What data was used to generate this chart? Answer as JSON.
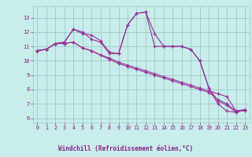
{
  "background_color": "#c8ecea",
  "grid_color": "#99ccca",
  "line_color": "#993399",
  "xlabel": "Windchill (Refroidissement éolien,°C)",
  "xlabel_color": "#882288",
  "tick_color": "#882288",
  "xlim": [
    -0.5,
    23.5
  ],
  "ylim": [
    5.7,
    13.8
  ],
  "yticks": [
    6,
    7,
    8,
    9,
    10,
    11,
    12,
    13
  ],
  "xticks": [
    0,
    1,
    2,
    3,
    4,
    5,
    6,
    7,
    8,
    9,
    10,
    11,
    12,
    13,
    14,
    15,
    16,
    17,
    18,
    19,
    20,
    21,
    22,
    23
  ],
  "lines": [
    [
      10.7,
      10.8,
      11.2,
      11.3,
      12.2,
      11.9,
      11.8,
      11.4,
      10.6,
      10.5,
      12.5,
      13.3,
      13.4,
      11.9,
      11.0,
      11.0,
      11.0,
      10.8,
      10.0,
      8.1,
      7.0,
      6.5,
      6.4,
      6.6
    ],
    [
      10.7,
      10.8,
      11.2,
      11.3,
      12.2,
      12.0,
      11.5,
      11.3,
      10.5,
      10.5,
      12.5,
      13.3,
      13.4,
      11.0,
      11.0,
      11.0,
      11.0,
      10.8,
      10.0,
      8.1,
      7.2,
      6.9,
      6.4,
      6.6
    ],
    [
      10.7,
      10.8,
      11.2,
      11.2,
      11.3,
      10.9,
      10.7,
      10.4,
      10.2,
      9.9,
      9.7,
      9.5,
      9.3,
      9.1,
      8.9,
      8.7,
      8.5,
      8.3,
      8.1,
      7.9,
      7.7,
      7.5,
      6.5,
      6.6
    ],
    [
      10.7,
      10.8,
      11.2,
      11.2,
      11.3,
      10.9,
      10.7,
      10.4,
      10.1,
      9.8,
      9.6,
      9.4,
      9.2,
      9.0,
      8.8,
      8.6,
      8.4,
      8.2,
      8.0,
      7.8,
      7.3,
      7.0,
      6.5,
      6.5
    ]
  ],
  "figsize": [
    3.2,
    2.0
  ],
  "dpi": 100
}
